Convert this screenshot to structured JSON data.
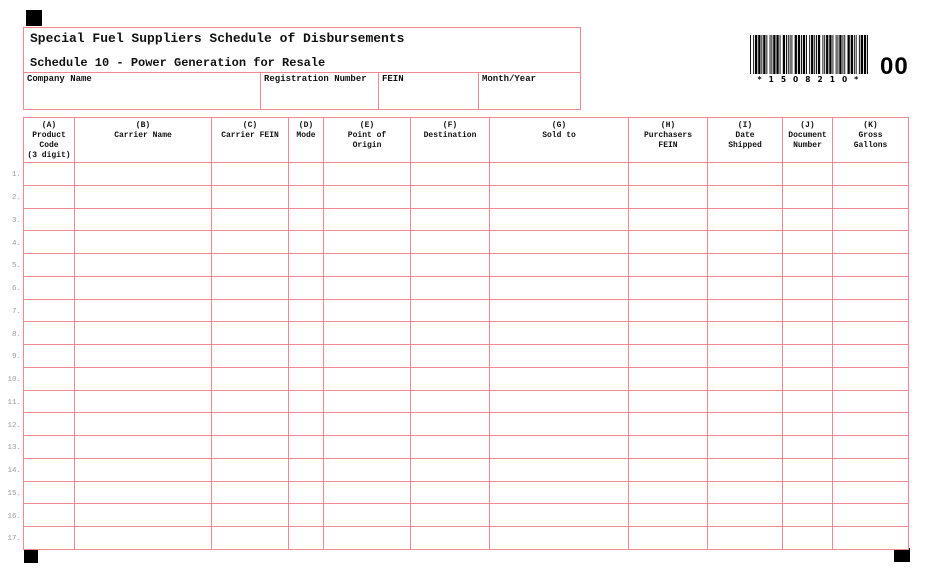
{
  "form": {
    "title": "Special Fuel Suppliers Schedule of Disbursements",
    "subtitle": "Schedule 10 - Power Generation for Resale",
    "fields": [
      {
        "label": "Company Name",
        "value": ""
      },
      {
        "label": "Registration Number",
        "value": ""
      },
      {
        "label": "FEIN",
        "value": ""
      },
      {
        "label": "Month/Year",
        "value": ""
      }
    ]
  },
  "barcode": {
    "value": "*1508210*",
    "display": "* 1 5 0 8 2 1 0 *",
    "suffix": "00"
  },
  "table": {
    "columns": [
      {
        "id": "A",
        "label": "(A)\nProduct\nCode\n(3 digit)"
      },
      {
        "id": "B",
        "label": "(B)\nCarrier Name"
      },
      {
        "id": "C",
        "label": "(C)\nCarrier FEIN"
      },
      {
        "id": "D",
        "label": "(D)\nMode"
      },
      {
        "id": "E",
        "label": "(E)\nPoint of\nOrigin"
      },
      {
        "id": "F",
        "label": "(F)\nDestination"
      },
      {
        "id": "G",
        "label": "(G)\nSold to"
      },
      {
        "id": "H",
        "label": "(H)\nPurchasers\nFEIN"
      },
      {
        "id": "I",
        "label": "(I)\nDate\nShipped"
      },
      {
        "id": "J",
        "label": "(J)\nDocument\nNumber"
      },
      {
        "id": "K",
        "label": "(K)\nGross\nGallons"
      }
    ],
    "row_numbers": [
      "1.",
      "2.",
      "3.",
      "4.",
      "5.",
      "6.",
      "7.",
      "8.",
      "9.",
      "10.",
      "11.",
      "12.",
      "13.",
      "14.",
      "15.",
      "16.",
      "17."
    ],
    "cell_values": []
  },
  "colors": {
    "form_pink": "#f28992",
    "row_number_gray": "#9a9a9a",
    "mark_black": "#000000"
  }
}
